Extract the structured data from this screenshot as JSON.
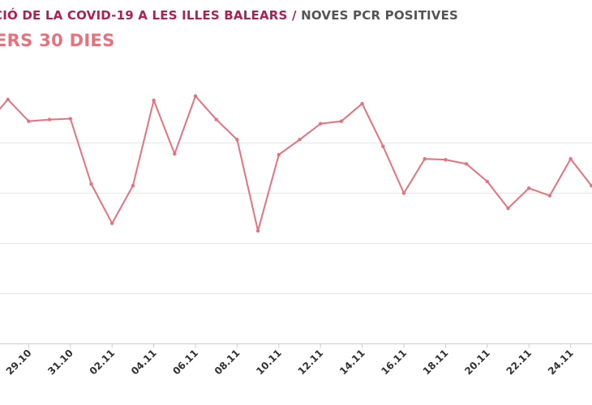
{
  "header": {
    "title_main": "CIÓ DE LA COVID-19 A LES ILLES BALEARS",
    "title_sep": "/",
    "title_metric": "NOVES PCR POSITIVES",
    "subtitle": "ERS 30 DIES"
  },
  "chart_data": {
    "type": "line",
    "title": "CIÓ DE LA COVID-19 A LES ILLES BALEARS / NOVES PCR POSITIVES",
    "subtitle": "ERS 30 DIES",
    "x_labels": [
      "29.10",
      "31.10",
      "02.11",
      "04.11",
      "06.11",
      "08.11",
      "10.11",
      "12.11",
      "14.11",
      "16.11",
      "18.11",
      "20.11",
      "22.11",
      "24.11"
    ],
    "ylim": [
      0,
      300
    ],
    "grid": true,
    "legend": "none",
    "line_color": "#e7717d",
    "gridline_values": [
      60,
      120,
      180,
      240
    ],
    "series": [
      {
        "values": [
          263,
          292,
          266,
          268,
          269,
          191,
          144,
          189,
          291,
          227,
          296,
          268,
          244,
          135,
          226,
          244,
          263,
          266,
          287,
          236,
          180,
          221,
          220,
          215,
          194,
          162,
          186,
          177,
          221,
          189
        ]
      }
    ]
  }
}
